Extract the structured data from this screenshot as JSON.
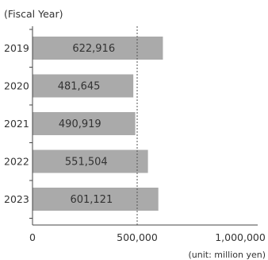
{
  "chart_data": {
    "type": "bar",
    "orientation": "horizontal",
    "axis_title": "(Fiscal Year)",
    "categories": [
      "2019",
      "2020",
      "2021",
      "2022",
      "2023"
    ],
    "values": [
      622916,
      481645,
      490919,
      551504,
      601121
    ],
    "value_labels": [
      "622,916",
      "481,645",
      "490,919",
      "551,504",
      "601,121"
    ],
    "x_ticks": [
      {
        "value": 0,
        "label": "0"
      },
      {
        "value": 500000,
        "label": "500,000"
      },
      {
        "value": 1000000,
        "label": "1,000,000"
      }
    ],
    "xlim": [
      0,
      1000000
    ],
    "reference_line": 500000,
    "unit_note": "(unit: million yen)",
    "grid": false,
    "legend": "none"
  },
  "colors": {
    "bar": "#aaaaaa",
    "text": "#333333",
    "axis": "#444444"
  }
}
